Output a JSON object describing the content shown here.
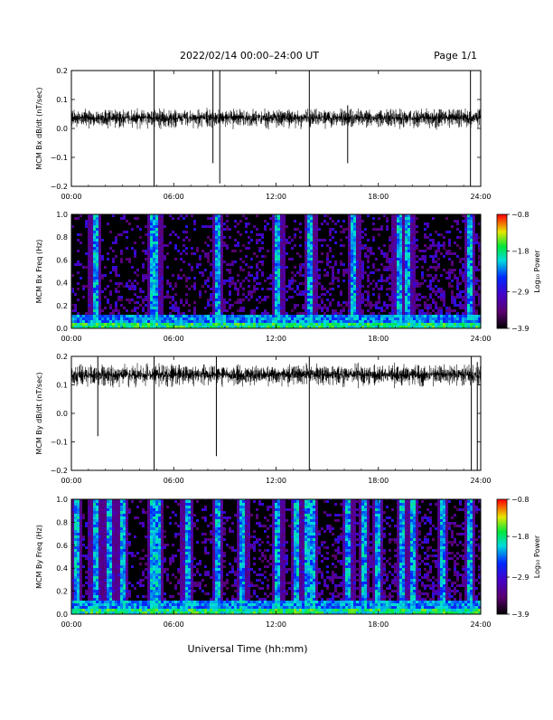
{
  "header": {
    "title": "2022/02/14  00:00–24:00 UT",
    "page": "Page 1/1"
  },
  "footer": {
    "xlabel": "Universal Time (hh:mm)"
  },
  "chart_data": [
    {
      "type": "line",
      "ylabel": "MCM Bx dB/dt (nT/sec)",
      "xlim": [
        0,
        24
      ],
      "ylim": [
        -0.2,
        0.2
      ],
      "xticks": [
        "00:00",
        "06:00",
        "12:00",
        "18:00",
        "24:00"
      ],
      "yticks": [
        "−0.2",
        "−0.1",
        "0.0",
        "0.1",
        "0.2"
      ],
      "baseline": 0.04,
      "noise_amplitude": 0.03,
      "spikes": [
        {
          "x": 4.85,
          "ymin": -0.2,
          "ymax": 0.2
        },
        {
          "x": 8.3,
          "ymin": -0.12,
          "ymax": 0.2
        },
        {
          "x": 8.7,
          "ymin": -0.19,
          "ymax": 0.2
        },
        {
          "x": 13.95,
          "ymin": -0.2,
          "ymax": 0.2
        },
        {
          "x": 23.4,
          "ymin": -0.2,
          "ymax": 0.2
        },
        {
          "x": 16.2,
          "ymin": -0.12,
          "ymax": 0.08
        }
      ]
    },
    {
      "type": "heatmap",
      "ylabel": "MCM Bx Freq (Hz)",
      "xlim": [
        0,
        24
      ],
      "ylim": [
        0,
        1.0
      ],
      "xticks": [
        "00:00",
        "06:00",
        "12:00",
        "18:00",
        "24:00"
      ],
      "yticks": [
        "0.0",
        "0.2",
        "0.4",
        "0.6",
        "0.8",
        "1.0"
      ],
      "colorbar": {
        "label": "Log₁₀ Power",
        "ticks": [
          "−3.9",
          "−2.9",
          "−1.8",
          "−0.8"
        ],
        "range": [
          -3.9,
          -0.8
        ]
      },
      "bright_columns": [
        1.3,
        4.75,
        4.9,
        8.5,
        12.05,
        13.95,
        16.5,
        19.1,
        19.7,
        23.3
      ]
    },
    {
      "type": "line",
      "ylabel": "MCM By dB/dt (nT/sec)",
      "xlim": [
        0,
        24
      ],
      "ylim": [
        -0.2,
        0.2
      ],
      "xticks": [
        "00:00",
        "06:00",
        "12:00",
        "18:00",
        "24:00"
      ],
      "yticks": [
        "−0.2",
        "−0.1",
        "0.0",
        "0.1",
        "0.2"
      ],
      "baseline": 0.14,
      "noise_amplitude": 0.035,
      "spikes": [
        {
          "x": 1.55,
          "ymin": -0.08,
          "ymax": 0.2
        },
        {
          "x": 4.85,
          "ymin": -0.2,
          "ymax": 0.2
        },
        {
          "x": 8.5,
          "ymin": -0.15,
          "ymax": 0.2
        },
        {
          "x": 13.95,
          "ymin": -0.2,
          "ymax": 0.2
        },
        {
          "x": 23.45,
          "ymin": -0.2,
          "ymax": 0.2
        },
        {
          "x": 23.8,
          "ymin": -0.2,
          "ymax": 0.18
        }
      ]
    },
    {
      "type": "heatmap",
      "ylabel": "MCM By Freq (Hz)",
      "xlim": [
        0,
        24
      ],
      "ylim": [
        0,
        1.0
      ],
      "xticks": [
        "00:00",
        "06:00",
        "12:00",
        "18:00",
        "24:00"
      ],
      "yticks": [
        "0.0",
        "0.2",
        "0.4",
        "0.6",
        "0.8",
        "1.0"
      ],
      "colorbar": {
        "label": "Log₁₀ Power",
        "ticks": [
          "−3.9",
          "−2.9",
          "−1.8",
          "−0.8"
        ],
        "range": [
          -3.9,
          -0.8
        ]
      },
      "bright_columns": [
        0.2,
        1.3,
        2.1,
        2.9,
        4.75,
        4.95,
        6.7,
        8.5,
        10.0,
        12.05,
        13.1,
        13.8,
        14.05,
        16.2,
        17.1,
        17.9,
        19.3,
        19.9,
        21.7,
        23.3
      ]
    }
  ]
}
